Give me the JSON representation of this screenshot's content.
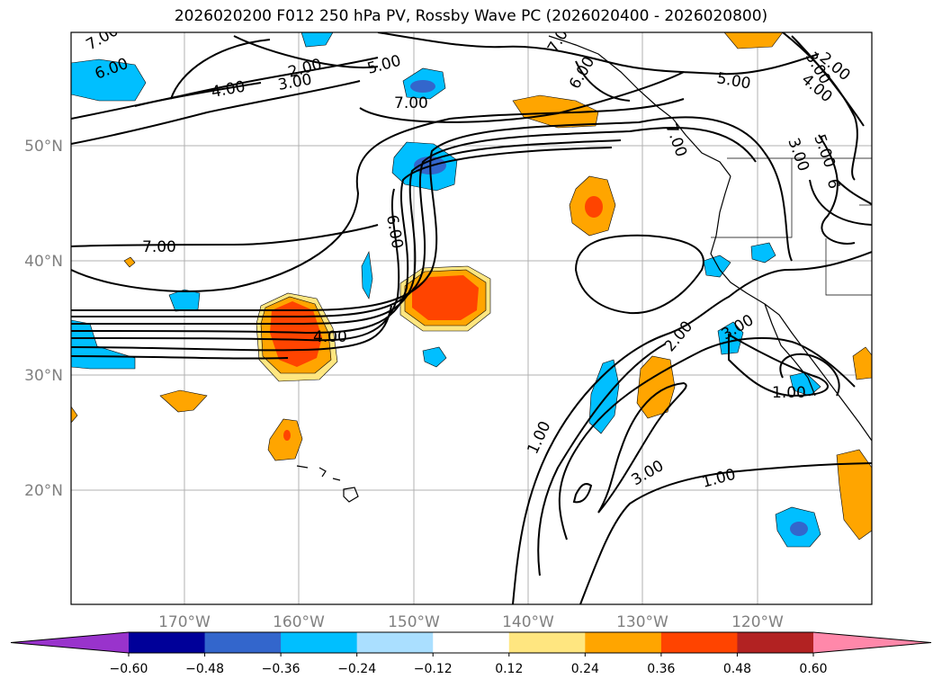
{
  "title": "2026020200 F012 250 hPa PV, Rossby Wave PC (2026020400 - 2026020800)",
  "map": {
    "lat_ticks": [
      "50°N",
      "40°N",
      "30°N",
      "20°N"
    ],
    "lon_ticks": [
      "170°W",
      "160°W",
      "150°W",
      "140°W",
      "130°W",
      "120°W"
    ],
    "contour_labels": [
      "7.00",
      "6.00",
      "4.00",
      "2.00",
      "3.00",
      "5.00",
      "7.00",
      "7.00",
      "6.00",
      "7.00",
      "6.00",
      "5.00",
      "3.00",
      "2.00",
      "4.00",
      "5.00",
      "3.00",
      "6",
      "7.00",
      "4.00",
      "2.00",
      "3.00",
      "1.00",
      "1.00",
      "3.00",
      "1.00"
    ]
  },
  "colorbar": {
    "colors": [
      "#9933cc",
      "#000099",
      "#3366cc",
      "#00bfff",
      "#aadfff",
      "#ffffff",
      "#ffe680",
      "#ffa500",
      "#ff4400",
      "#b22222",
      "#ff88aa"
    ],
    "tick_labels": [
      "−0.60",
      "−0.48",
      "−0.36",
      "−0.24",
      "−0.12",
      "0.12",
      "0.24",
      "0.36",
      "0.48",
      "0.60"
    ]
  }
}
